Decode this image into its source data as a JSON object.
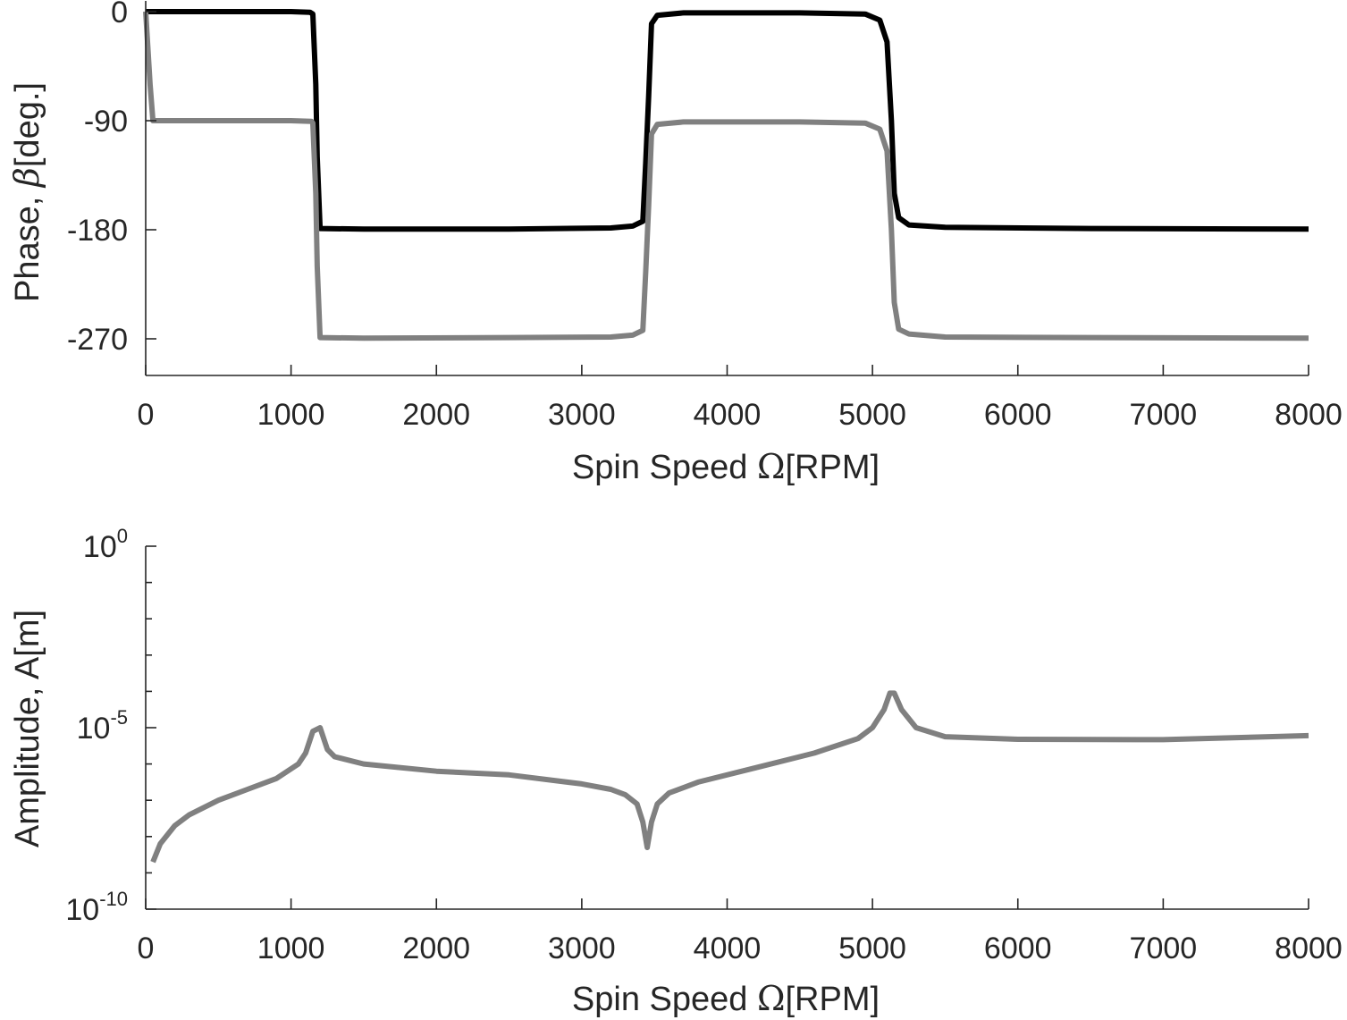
{
  "chart_data": [
    {
      "type": "line",
      "xlabel": {
        "prefix": "Spin Speed ",
        "symbol": "Ω",
        "suffix": "[RPM]"
      },
      "ylabel": {
        "prefix": "Phase, ",
        "symbol": "β",
        "suffix": "[deg.]"
      },
      "xlim": [
        0,
        8000
      ],
      "ylim": [
        -300,
        0
      ],
      "x_ticks": [
        "0",
        "1000",
        "2000",
        "3000",
        "4000",
        "5000",
        "6000",
        "7000",
        "8000"
      ],
      "y_ticks": [
        "0",
        "-90",
        "-180",
        "-270"
      ],
      "y_tick_values": [
        0,
        -90,
        -180,
        -270
      ],
      "grid": false,
      "series": [
        {
          "color": "#000000",
          "points": [
            [
              0,
              0
            ],
            [
              1000,
              0
            ],
            [
              1130,
              -0.5
            ],
            [
              1150,
              -2
            ],
            [
              1170,
              -60
            ],
            [
              1180,
              -120
            ],
            [
              1200,
              -179
            ],
            [
              1500,
              -179.5
            ],
            [
              2500,
              -179.5
            ],
            [
              3200,
              -178.5
            ],
            [
              3350,
              -177
            ],
            [
              3420,
              -173
            ],
            [
              3440,
              -125
            ],
            [
              3460,
              -70
            ],
            [
              3480,
              -10
            ],
            [
              3520,
              -3
            ],
            [
              3700,
              -1
            ],
            [
              4500,
              -1
            ],
            [
              4950,
              -2
            ],
            [
              5050,
              -7
            ],
            [
              5100,
              -25
            ],
            [
              5130,
              -90
            ],
            [
              5150,
              -150
            ],
            [
              5180,
              -170
            ],
            [
              5250,
              -176
            ],
            [
              5500,
              -178
            ],
            [
              6500,
              -179
            ],
            [
              8000,
              -179.5
            ]
          ]
        },
        {
          "color": "#808080",
          "points": [
            [
              0,
              0
            ],
            [
              30,
              -60
            ],
            [
              50,
              -90
            ],
            [
              1000,
              -90
            ],
            [
              1140,
              -90.5
            ],
            [
              1150,
              -92
            ],
            [
              1170,
              -150
            ],
            [
              1180,
              -210
            ],
            [
              1200,
              -269
            ],
            [
              1500,
              -269.5
            ],
            [
              2500,
              -269
            ],
            [
              3200,
              -268.5
            ],
            [
              3350,
              -267
            ],
            [
              3420,
              -263
            ],
            [
              3440,
              -215
            ],
            [
              3460,
              -160
            ],
            [
              3480,
              -101
            ],
            [
              3520,
              -93
            ],
            [
              3700,
              -91
            ],
            [
              4500,
              -91
            ],
            [
              4950,
              -92
            ],
            [
              5050,
              -97
            ],
            [
              5100,
              -115
            ],
            [
              5130,
              -180
            ],
            [
              5150,
              -240
            ],
            [
              5180,
              -262
            ],
            [
              5250,
              -266
            ],
            [
              5500,
              -268.5
            ],
            [
              6500,
              -269
            ],
            [
              8000,
              -269.5
            ]
          ]
        }
      ]
    },
    {
      "type": "line",
      "xlabel": {
        "prefix": "Spin Speed ",
        "symbol": "Ω",
        "suffix": "[RPM]"
      },
      "ylabel": {
        "prefix": "Amplitude, A[m]",
        "symbol": "",
        "suffix": ""
      },
      "xlim": [
        0,
        8000
      ],
      "ylim": [
        1e-10,
        1
      ],
      "yscale": "log",
      "x_ticks": [
        "0",
        "1000",
        "2000",
        "3000",
        "4000",
        "5000",
        "6000",
        "7000",
        "8000"
      ],
      "y_ticks": [
        {
          "base": "10",
          "exp": "0"
        },
        {
          "base": "10",
          "exp": "-5"
        },
        {
          "base": "10",
          "exp": "-10"
        }
      ],
      "y_tick_values": [
        1,
        1e-05,
        1e-10
      ],
      "y_minor_tick_exponents": [
        -1,
        -2,
        -3,
        -4,
        -6,
        -7,
        -8,
        -9
      ],
      "grid": false,
      "series": [
        {
          "color": "#808080",
          "log_points": [
            [
              50,
              -8.7
            ],
            [
              100,
              -8.2
            ],
            [
              200,
              -7.7
            ],
            [
              300,
              -7.4
            ],
            [
              500,
              -7.0
            ],
            [
              700,
              -6.7
            ],
            [
              900,
              -6.4
            ],
            [
              1050,
              -6.0
            ],
            [
              1100,
              -5.7
            ],
            [
              1150,
              -5.1
            ],
            [
              1200,
              -5.0
            ],
            [
              1250,
              -5.6
            ],
            [
              1300,
              -5.8
            ],
            [
              1500,
              -6.0
            ],
            [
              2000,
              -6.2
            ],
            [
              2500,
              -6.3
            ],
            [
              3000,
              -6.55
            ],
            [
              3200,
              -6.7
            ],
            [
              3300,
              -6.85
            ],
            [
              3380,
              -7.1
            ],
            [
              3420,
              -7.6
            ],
            [
              3450,
              -8.3
            ],
            [
              3480,
              -7.6
            ],
            [
              3520,
              -7.1
            ],
            [
              3600,
              -6.8
            ],
            [
              3800,
              -6.5
            ],
            [
              4200,
              -6.1
            ],
            [
              4600,
              -5.7
            ],
            [
              4900,
              -5.3
            ],
            [
              5000,
              -5.0
            ],
            [
              5080,
              -4.5
            ],
            [
              5120,
              -4.05
            ],
            [
              5150,
              -4.05
            ],
            [
              5200,
              -4.5
            ],
            [
              5300,
              -5.0
            ],
            [
              5500,
              -5.25
            ],
            [
              6000,
              -5.32
            ],
            [
              7000,
              -5.33
            ],
            [
              8000,
              -5.22
            ]
          ]
        }
      ]
    }
  ]
}
